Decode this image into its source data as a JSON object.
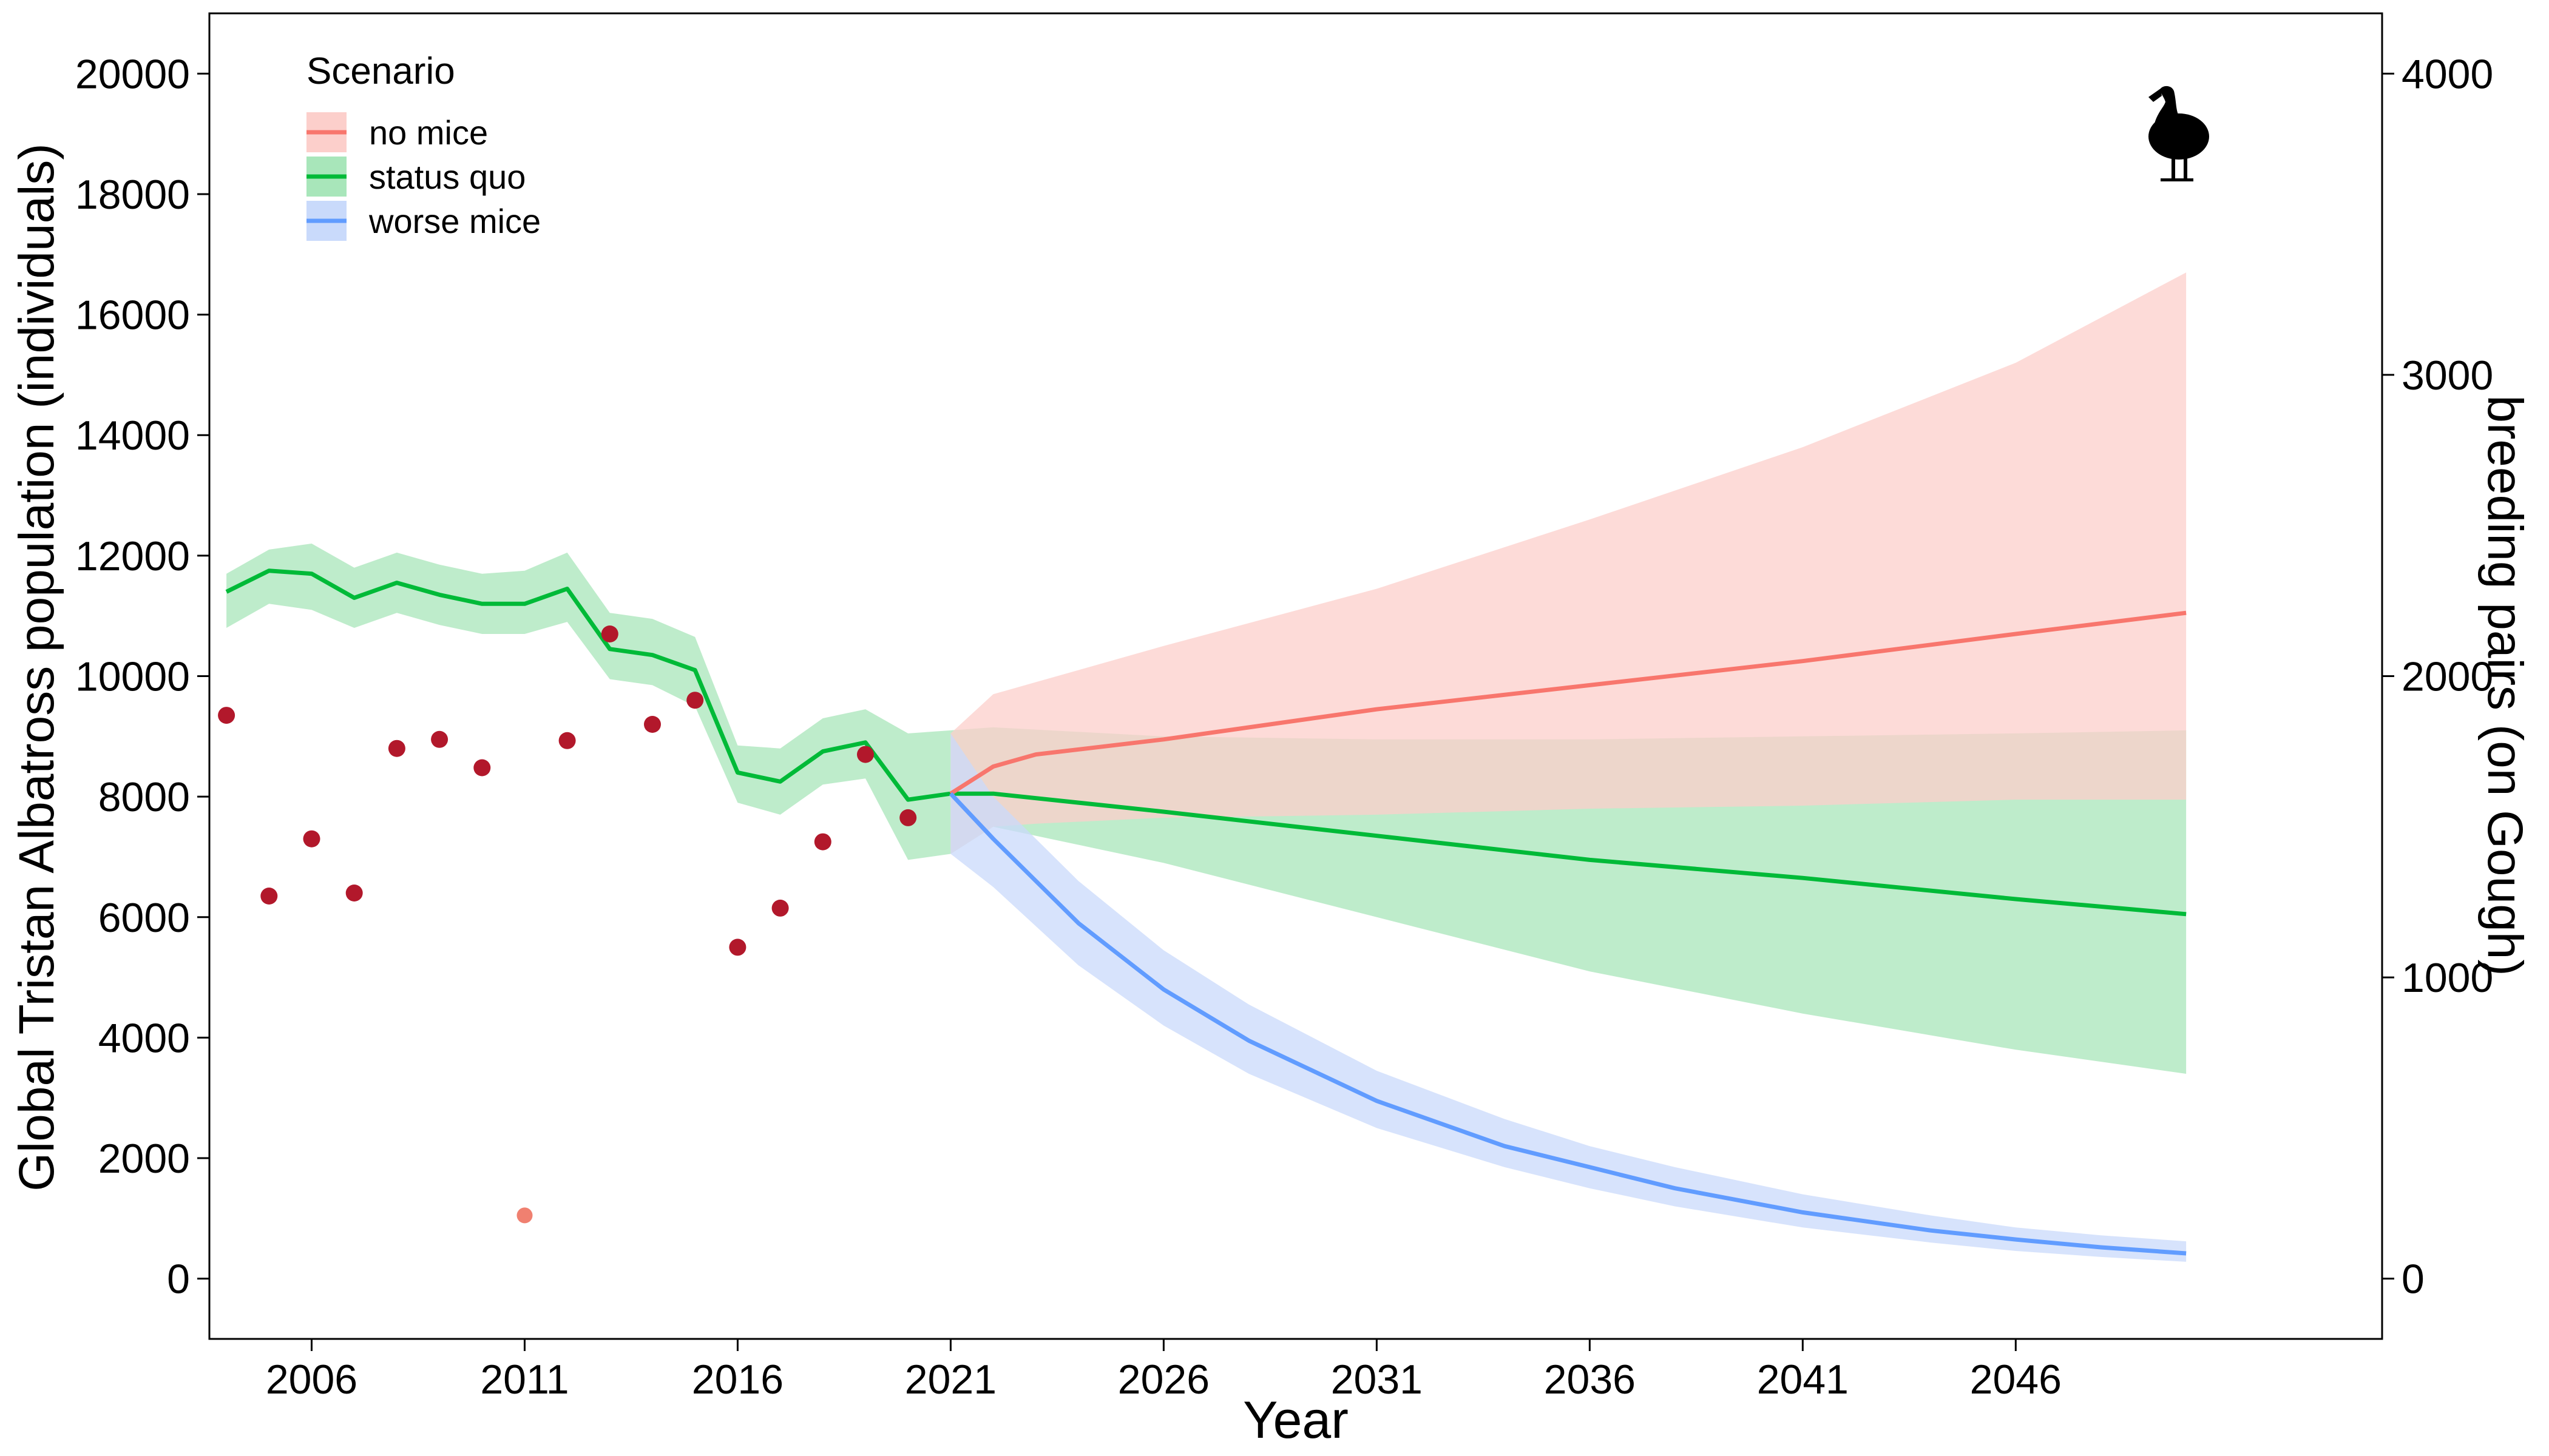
{
  "chart_data": {
    "type": "line",
    "title": "",
    "xlabel": "Year",
    "ylabel": "Global Tristan Albatross population (individuals)",
    "ylabel_right": "breeding pairs (on Gough)",
    "xlim": [
      2003.6,
      2054.6
    ],
    "ylim": [
      -1000,
      21000
    ],
    "ylim_right": [
      -200,
      4200
    ],
    "x_ticks": [
      2006,
      2011,
      2016,
      2021,
      2026,
      2031,
      2036,
      2041,
      2046
    ],
    "y_ticks": [
      0,
      2000,
      4000,
      6000,
      8000,
      10000,
      12000,
      14000,
      16000,
      18000,
      20000
    ],
    "y_ticks_right": [
      0,
      1000,
      2000,
      3000,
      4000
    ],
    "legend": {
      "title": "Scenario",
      "position": "top-left",
      "entries": [
        {
          "label": "no mice",
          "line_color": "#F8766D",
          "fill_color": "#FCCFCB"
        },
        {
          "label": "status quo",
          "line_color": "#00BA38",
          "fill_color": "#A8E6BA"
        },
        {
          "label": "worse mice",
          "line_color": "#619CFF",
          "fill_color": "#C9DAFB"
        }
      ]
    },
    "observed_points": {
      "color": "#B2182B",
      "x": [
        2004,
        2005,
        2006,
        2007,
        2008,
        2009,
        2010,
        2012,
        2013,
        2014,
        2015,
        2016,
        2017,
        2018,
        2019,
        2020
      ],
      "y": [
        9350,
        6350,
        7300,
        6400,
        8800,
        8950,
        8480,
        8930,
        10700,
        9200,
        9600,
        5500,
        6150,
        7250,
        8700,
        7650
      ]
    },
    "outlier_point": {
      "x": 2011,
      "y": 1050,
      "color": "#F08070"
    },
    "series": [
      {
        "name": "status quo (historical)",
        "color": "#00BA38",
        "band_color": "#A8E6BA",
        "x": [
          2004,
          2005,
          2006,
          2007,
          2008,
          2009,
          2010,
          2011,
          2012,
          2013,
          2014,
          2015,
          2016,
          2017,
          2018,
          2019,
          2020,
          2021
        ],
        "y": [
          11400,
          11750,
          11700,
          11300,
          11550,
          11350,
          11200,
          11200,
          11450,
          10450,
          10350,
          10100,
          8400,
          8250,
          8750,
          8900,
          7950,
          8050
        ],
        "lower": [
          10800,
          11200,
          11100,
          10800,
          11050,
          10850,
          10700,
          10700,
          10900,
          9950,
          9850,
          9500,
          7900,
          7700,
          8200,
          8300,
          6950,
          7050
        ],
        "upper": [
          11700,
          12100,
          12200,
          11800,
          12050,
          11850,
          11700,
          11750,
          12050,
          11050,
          10950,
          10650,
          8850,
          8800,
          9300,
          9450,
          9050,
          9100
        ]
      },
      {
        "name": "status quo",
        "color": "#00BA38",
        "band_color": "#A8E6BA",
        "x": [
          2021,
          2022,
          2026,
          2031,
          2036,
          2041,
          2046,
          2050
        ],
        "y": [
          8050,
          8050,
          7750,
          7350,
          6950,
          6650,
          6300,
          6050
        ],
        "lower": [
          7050,
          7500,
          6900,
          6000,
          5100,
          4400,
          3800,
          3400
        ],
        "upper": [
          9100,
          9150,
          9000,
          8950,
          8950,
          9000,
          9050,
          9100
        ]
      },
      {
        "name": "no mice",
        "color": "#F8766D",
        "band_color": "#FCCFCB",
        "x": [
          2021,
          2022,
          2023,
          2026,
          2031,
          2036,
          2041,
          2046,
          2050
        ],
        "y": [
          8050,
          8500,
          8700,
          8950,
          9450,
          9850,
          10250,
          10700,
          11050
        ],
        "lower": [
          7050,
          7500,
          7550,
          7650,
          7700,
          7800,
          7850,
          7950,
          7950
        ],
        "upper": [
          9050,
          9700,
          9900,
          10500,
          11450,
          12600,
          13800,
          15200,
          16700
        ]
      },
      {
        "name": "worse mice",
        "color": "#619CFF",
        "band_color": "#C9DAFB",
        "x": [
          2021,
          2022,
          2023,
          2024,
          2026,
          2028,
          2031,
          2034,
          2036,
          2038,
          2041,
          2044,
          2046,
          2048,
          2050
        ],
        "y": [
          8050,
          7300,
          6600,
          5900,
          4800,
          3950,
          2950,
          2200,
          1850,
          1500,
          1100,
          800,
          650,
          520,
          420
        ],
        "lower": [
          7050,
          6500,
          5850,
          5200,
          4200,
          3400,
          2500,
          1850,
          1500,
          1200,
          850,
          600,
          460,
          360,
          280
        ],
        "upper": [
          9050,
          8000,
          7300,
          6600,
          5450,
          4550,
          3450,
          2650,
          2200,
          1850,
          1400,
          1050,
          850,
          720,
          620
        ]
      }
    ]
  }
}
